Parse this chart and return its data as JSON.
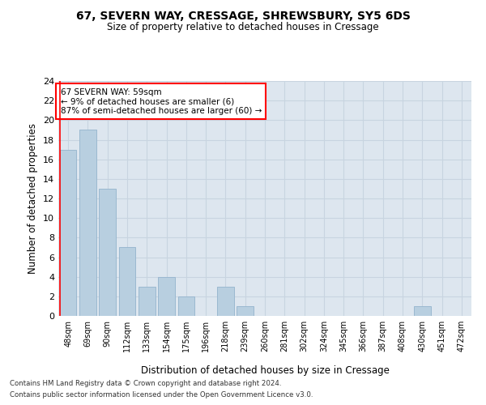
{
  "title1": "67, SEVERN WAY, CRESSAGE, SHREWSBURY, SY5 6DS",
  "title2": "Size of property relative to detached houses in Cressage",
  "xlabel": "Distribution of detached houses by size in Cressage",
  "ylabel": "Number of detached properties",
  "categories": [
    "48sqm",
    "69sqm",
    "90sqm",
    "112sqm",
    "133sqm",
    "154sqm",
    "175sqm",
    "196sqm",
    "218sqm",
    "239sqm",
    "260sqm",
    "281sqm",
    "302sqm",
    "324sqm",
    "345sqm",
    "366sqm",
    "387sqm",
    "408sqm",
    "430sqm",
    "451sqm",
    "472sqm"
  ],
  "values": [
    17,
    19,
    13,
    7,
    3,
    4,
    2,
    0,
    3,
    1,
    0,
    0,
    0,
    0,
    0,
    0,
    0,
    0,
    1,
    0,
    0
  ],
  "bar_color": "#b8cfe0",
  "bar_edge_color": "#9ab8d0",
  "annotation_line1": "67 SEVERN WAY: 59sqm",
  "annotation_line2": "← 9% of detached houses are smaller (6)",
  "annotation_line3": "87% of semi-detached houses are larger (60) →",
  "ylim": [
    0,
    24
  ],
  "yticks": [
    0,
    2,
    4,
    6,
    8,
    10,
    12,
    14,
    16,
    18,
    20,
    22,
    24
  ],
  "grid_color": "#c8d4e0",
  "bg_color": "#dde6ef",
  "footer1": "Contains HM Land Registry data © Crown copyright and database right 2024.",
  "footer2": "Contains public sector information licensed under the Open Government Licence v3.0."
}
